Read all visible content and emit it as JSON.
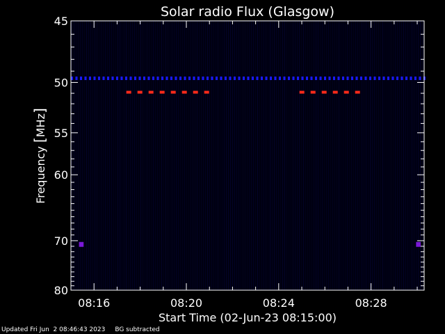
{
  "chart_data": {
    "type": "heatmap",
    "title": "Solar radio Flux (Glasgow)",
    "xlabel": "Start Time (02-Jun-23 08:15:00)",
    "ylabel_parts": [
      "Frequency ",
      "[",
      "MHz",
      "]"
    ],
    "x_unit": "minutes after 08:15:00",
    "xlim": [
      0,
      15.3
    ],
    "ylim": [
      45,
      80
    ],
    "y_scale": "reciprocal",
    "x_ticks": [
      {
        "value": 1,
        "label": "08:16"
      },
      {
        "value": 5,
        "label": "08:20"
      },
      {
        "value": 9,
        "label": "08:24"
      },
      {
        "value": 13,
        "label": "08:28"
      }
    ],
    "y_ticks": [
      {
        "value": 45,
        "label": "45"
      },
      {
        "value": 50,
        "label": "50"
      },
      {
        "value": 55,
        "label": "55"
      },
      {
        "value": 60,
        "label": "60"
      },
      {
        "value": 70,
        "label": "70"
      },
      {
        "value": 80,
        "label": "80"
      }
    ],
    "features": [
      {
        "kind": "interference-line",
        "freq_mhz": 49.6,
        "x_start": 0.0,
        "x_end": 15.3,
        "intensity": "medium",
        "color": "#1a1aff"
      },
      {
        "kind": "interference-line",
        "freq_mhz": 50.9,
        "x_start": 2.4,
        "x_end": 6.2,
        "intensity": "high",
        "color": "#ff2a1a"
      },
      {
        "kind": "interference-line",
        "freq_mhz": 50.9,
        "x_start": 9.9,
        "x_end": 12.7,
        "intensity": "high",
        "color": "#ff2a1a"
      },
      {
        "kind": "spot",
        "freq_mhz": 70.6,
        "x_start": 0.35,
        "x_end": 0.55,
        "intensity": "medium",
        "color": "#7a18d8"
      },
      {
        "kind": "spot",
        "freq_mhz": 70.6,
        "x_start": 14.95,
        "x_end": 15.15,
        "intensity": "medium",
        "color": "#7a18d8"
      }
    ],
    "background": "#000010",
    "grid": false,
    "legend": "none"
  },
  "footer": {
    "updated": "Updated Fri Jun  2 08:46:43 2023",
    "note": "BG subtracted"
  }
}
